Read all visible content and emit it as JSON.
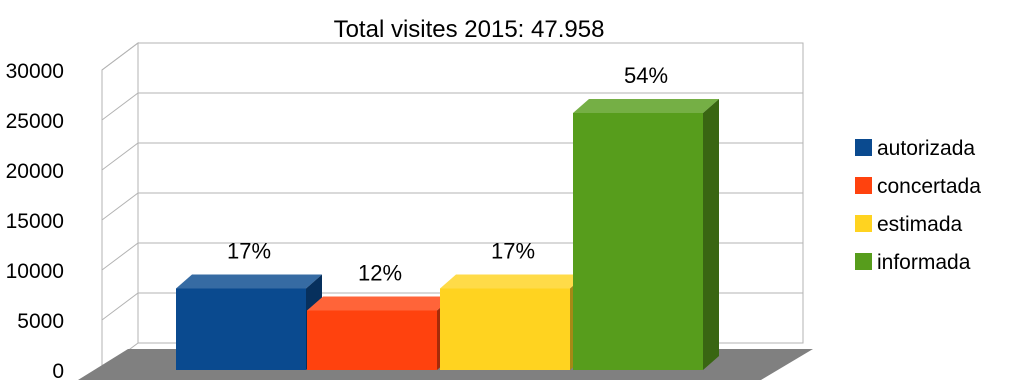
{
  "chart_data": {
    "type": "bar",
    "title": "Total visites 2015: 47.958",
    "xlabel": "",
    "ylabel": "",
    "ylim": [
      0,
      30000
    ],
    "yticks": [
      0,
      5000,
      10000,
      15000,
      20000,
      25000,
      30000
    ],
    "grid": true,
    "legend_position": "right",
    "series": [
      {
        "name": "autorizada",
        "value": 8150,
        "label": "17%",
        "color": "#0a4a8f"
      },
      {
        "name": "concertada",
        "value": 5950,
        "label": "12%",
        "color": "#ff420e"
      },
      {
        "name": "estimada",
        "value": 8150,
        "label": "17%",
        "color": "#ffd320"
      },
      {
        "name": "informada",
        "value": 25700,
        "label": "54%",
        "color": "#579d1c"
      }
    ]
  }
}
